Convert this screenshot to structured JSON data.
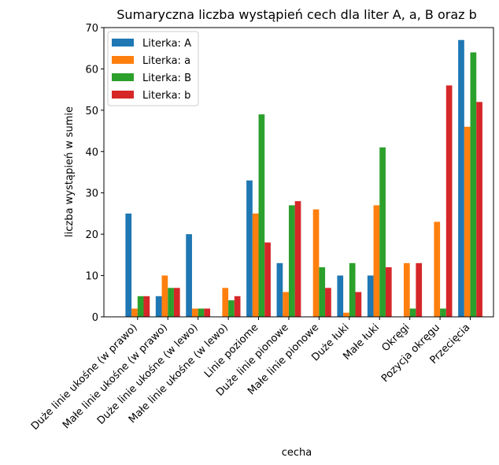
{
  "chart_data": {
    "type": "bar",
    "title": "Sumaryczna liczba wystąpień cech dla liter A, a, B oraz b",
    "xlabel": "cecha",
    "ylabel": "liczba wystąpień w sumie",
    "ylim": [
      0,
      70
    ],
    "yticks": [
      0,
      10,
      20,
      30,
      40,
      50,
      60,
      70
    ],
    "grid": false,
    "legend_position": "top-left",
    "categories": [
      "Duże linie ukośne (w prawo)",
      "Małe linie ukośne (w prawo)",
      "Duże linie ukośne (w lewo)",
      "Małe linie ukośne (w lewo)",
      "Linie poziome",
      "Duże linie pionowe",
      "Małe linie pionowe",
      "Duże łuki",
      "Małe łuki",
      "Okręgi",
      "Pozycja okręgu",
      "Przecięcia"
    ],
    "series": [
      {
        "name": "Literka: A",
        "color": "#1f77b4",
        "values": [
          25,
          5,
          20,
          0,
          33,
          13,
          0,
          10,
          10,
          0,
          0,
          67
        ]
      },
      {
        "name": "Literka: a",
        "color": "#ff7f0e",
        "values": [
          2,
          10,
          2,
          7,
          25,
          6,
          26,
          1,
          27,
          13,
          23,
          46
        ]
      },
      {
        "name": "Literka: B",
        "color": "#2ca02c",
        "values": [
          5,
          7,
          2,
          4,
          49,
          27,
          12,
          13,
          41,
          2,
          2,
          64
        ]
      },
      {
        "name": "Literka: b",
        "color": "#d62728",
        "values": [
          5,
          7,
          2,
          5,
          18,
          28,
          7,
          6,
          12,
          13,
          56,
          52
        ]
      }
    ]
  }
}
